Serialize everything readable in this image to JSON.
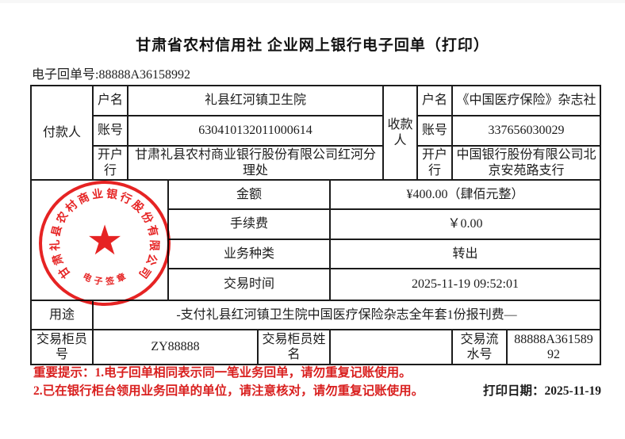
{
  "page": {
    "title": "甘肃省农村信用社 企业网上银行电子回单（打印）",
    "receipt_no_label": "电子回单号:",
    "receipt_no": "88888A36158992"
  },
  "labels": {
    "payer": "付款人",
    "payee": "收款人",
    "account_name": "户名",
    "account_no": "账号",
    "bank": "开户行",
    "amount": "金额",
    "fee": "手续费",
    "biz_type": "业务种类",
    "txn_time": "交易时间",
    "purpose": "用途",
    "teller_no": "交易柜员号",
    "teller_name": "交易柜员姓名",
    "serial_no": "交易流水号"
  },
  "payer": {
    "account_name": "礼县红河镇卫生院",
    "account_no": "630410132011000614",
    "bank": "甘肃礼县农村商业银行股份有限公司红河分理处"
  },
  "payee": {
    "account_name": "《中国医疗保险》杂志社",
    "account_no": "337656030029",
    "bank": "中国银行股份有限公司北京安苑路支行"
  },
  "details": {
    "amount": "¥400.00（肆佰元整）",
    "fee": "￥0.00",
    "biz_type": "转出",
    "txn_time": "2025-11-19 09:52:01",
    "purpose": "-支付礼县红河镇卫生院中国医疗保险杂志全年套1份报刊费—",
    "teller_no": "ZY88888",
    "teller_name": "",
    "serial_no": "88888A36158992"
  },
  "seal": {
    "ring_text": "甘肃礼县农村商业银行股份有限公司",
    "bottom_text": "电子签章",
    "star_glyph": "★",
    "color": "#e41212"
  },
  "footer": {
    "notice_line1": "重要提示：1.电子回单相同表示同一笔业务回单，请勿重复记账使用。",
    "notice_line2": "2.已在银行柜台领用业务回单的单位，请注意核对，请勿重复记账使用。",
    "print_date_label": "打印日期：",
    "print_date": "2025-11-19",
    "notice_color": "#d9201f"
  }
}
